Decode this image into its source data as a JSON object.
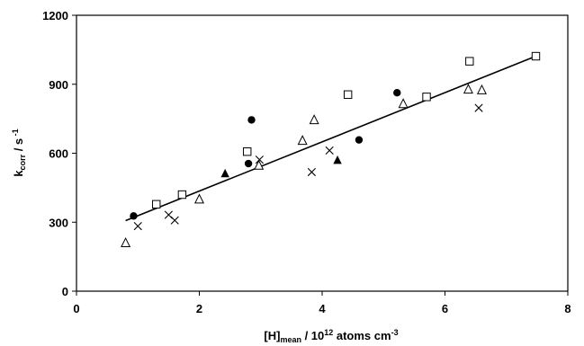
{
  "chart_data": {
    "type": "scatter",
    "title": "",
    "xlabel": {
      "main": "[H]",
      "sub": "mean",
      "rest": " / 10",
      "sup": "12",
      "tail": " atoms cm",
      "sup2": "-3"
    },
    "ylabel": {
      "main": "k",
      "sub": "corr",
      "rest": " / s",
      "sup": " -1"
    },
    "xlim": [
      0,
      8
    ],
    "ylim": [
      0,
      1200
    ],
    "x_ticks": [
      0,
      2,
      4,
      6,
      8
    ],
    "y_ticks": [
      0,
      300,
      600,
      900,
      1200
    ],
    "grid": false,
    "legend": "none",
    "series": [
      {
        "marker": "filled-circle",
        "points": [
          [
            0.93,
            327
          ],
          [
            2.85,
            745
          ],
          [
            2.8,
            555
          ],
          [
            4.6,
            658
          ],
          [
            5.22,
            863
          ]
        ]
      },
      {
        "marker": "filled-triangle",
        "points": [
          [
            2.42,
            512
          ],
          [
            4.25,
            570
          ]
        ]
      },
      {
        "marker": "open-square",
        "points": [
          [
            1.3,
            378
          ],
          [
            1.72,
            420
          ],
          [
            2.78,
            607
          ],
          [
            4.42,
            855
          ],
          [
            5.7,
            845
          ],
          [
            6.4,
            1000
          ],
          [
            7.48,
            1022
          ]
        ]
      },
      {
        "marker": "open-triangle",
        "points": [
          [
            0.8,
            210
          ],
          [
            2.0,
            400
          ],
          [
            2.97,
            547
          ],
          [
            3.68,
            655
          ],
          [
            3.87,
            745
          ],
          [
            5.32,
            815
          ],
          [
            6.38,
            878
          ],
          [
            6.6,
            875
          ]
        ]
      },
      {
        "marker": "cross",
        "points": [
          [
            1.0,
            283
          ],
          [
            1.5,
            332
          ],
          [
            1.6,
            308
          ],
          [
            2.98,
            572
          ],
          [
            3.83,
            518
          ],
          [
            4.12,
            612
          ],
          [
            6.55,
            797
          ]
        ]
      }
    ],
    "fit_line": {
      "x": [
        0.8,
        7.48
      ],
      "y": [
        307,
        1022
      ]
    }
  }
}
